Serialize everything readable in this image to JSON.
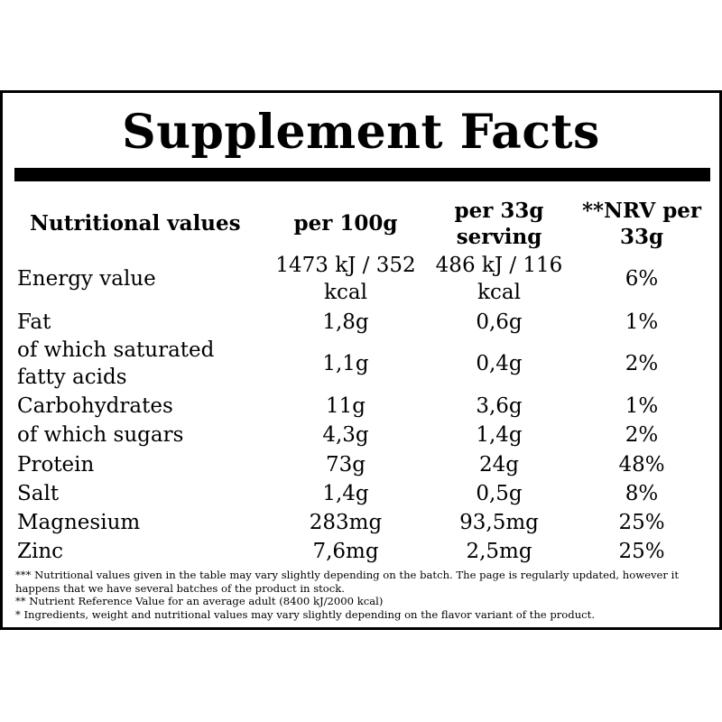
{
  "title": "Supplement Facts",
  "headers": {
    "label": "Nutritional values",
    "col1": "per 100g",
    "col2": "per 33g serving",
    "col3": "**NRV per 33g"
  },
  "rows": [
    {
      "label": "Energy value",
      "per100": "1473 kJ / 352 kcal",
      "perServing": "486 kJ / 116 kcal",
      "nrv": "6%"
    },
    {
      "label": "Fat",
      "per100": "1,8g",
      "perServing": "0,6g",
      "nrv": "1%"
    },
    {
      "label": "of which saturated fatty acids",
      "per100": "1,1g",
      "perServing": "0,4g",
      "nrv": "2%"
    },
    {
      "label": "Carbohydrates",
      "per100": "11g",
      "perServing": "3,6g",
      "nrv": "1%"
    },
    {
      "label": "of which sugars",
      "per100": "4,3g",
      "perServing": "1,4g",
      "nrv": "2%"
    },
    {
      "label": "Protein",
      "per100": "73g",
      "perServing": "24g",
      "nrv": "48%"
    },
    {
      "label": "Salt",
      "per100": "1,4g",
      "perServing": "0,5g",
      "nrv": "8%"
    },
    {
      "label": "Magnesium",
      "per100": "283mg",
      "perServing": "93,5mg",
      "nrv": "25%"
    },
    {
      "label": "Zinc",
      "per100": "7,6mg",
      "perServing": "2,5mg",
      "nrv": "25%"
    }
  ],
  "footnotes": [
    "*** Nutritional values given in the table may vary slightly depending on the batch. The page is regularly updated, however it happens that we have several batches of the product in stock.",
    "** Nutrient Reference Value for an average adult (8400 kJ/2000 kcal)",
    "* Ingredients, weight and nutritional values may vary slightly depending on the flavor variant of the product."
  ]
}
